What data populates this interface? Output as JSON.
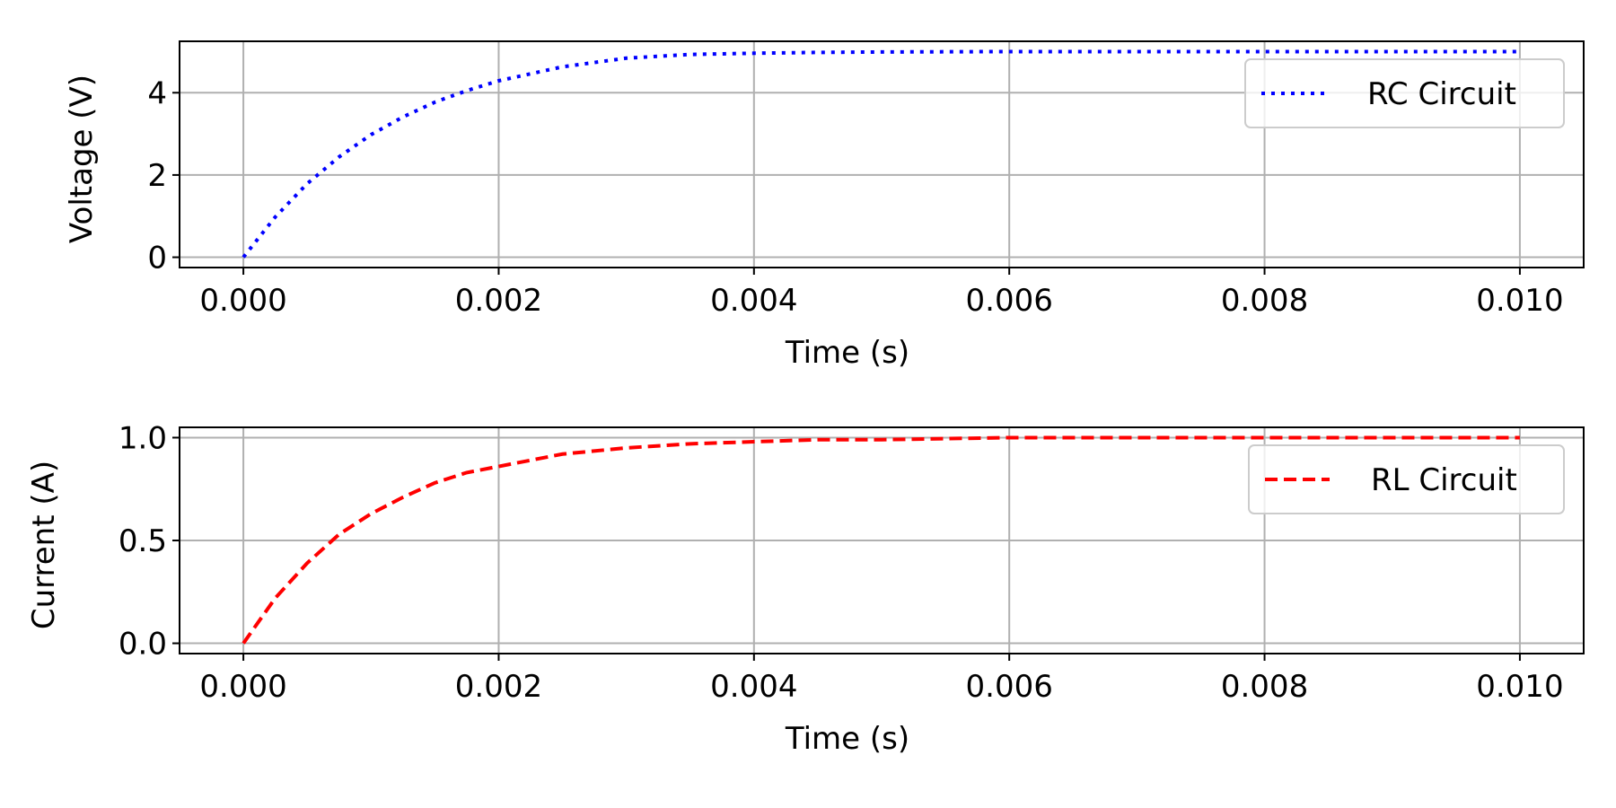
{
  "chart_data": [
    {
      "type": "line",
      "xlabel": "Time (s)",
      "ylabel": "Voltage (V)",
      "xlim": [
        -0.0005,
        0.0105
      ],
      "ylim": [
        -0.25,
        5.25
      ],
      "x_ticks": [
        0.0,
        0.002,
        0.004,
        0.006,
        0.008,
        0.01
      ],
      "x_tick_labels": [
        "0.000",
        "0.002",
        "0.004",
        "0.006",
        "0.008",
        "0.010"
      ],
      "y_ticks": [
        0,
        2,
        4
      ],
      "y_tick_labels": [
        "0",
        "2",
        "4"
      ],
      "grid": true,
      "legend_position": "upper-right",
      "series": [
        {
          "name": "RC Circuit",
          "color": "#0000ff",
          "style": "dotted",
          "x": [
            0,
            0.00025,
            0.0005,
            0.00075,
            0.001,
            0.00125,
            0.0015,
            0.00175,
            0.002,
            0.0025,
            0.003,
            0.0035,
            0.004,
            0.0045,
            0.005,
            0.006,
            0.007,
            0.008,
            0.009,
            0.01
          ],
          "values": [
            0.0,
            0.98,
            1.79,
            2.44,
            2.98,
            3.41,
            3.77,
            4.05,
            4.29,
            4.63,
            4.84,
            4.93,
            4.96,
            4.98,
            4.99,
            5.0,
            5.0,
            5.0,
            5.0,
            5.0
          ]
        }
      ]
    },
    {
      "type": "line",
      "xlabel": "Time (s)",
      "ylabel": "Current (A)",
      "xlim": [
        -0.0005,
        0.0105
      ],
      "ylim": [
        -0.05,
        1.05
      ],
      "x_ticks": [
        0.0,
        0.002,
        0.004,
        0.006,
        0.008,
        0.01
      ],
      "x_tick_labels": [
        "0.000",
        "0.002",
        "0.004",
        "0.006",
        "0.008",
        "0.010"
      ],
      "y_ticks": [
        0.0,
        0.5,
        1.0
      ],
      "y_tick_labels": [
        "0.0",
        "0.5",
        "1.0"
      ],
      "grid": true,
      "legend_position": "upper-right",
      "series": [
        {
          "name": "RL Circuit",
          "color": "#ff0000",
          "style": "dashed",
          "x": [
            0,
            0.00025,
            0.0005,
            0.00075,
            0.001,
            0.00125,
            0.0015,
            0.00175,
            0.002,
            0.0025,
            0.003,
            0.0035,
            0.004,
            0.0045,
            0.005,
            0.006,
            0.007,
            0.008,
            0.009,
            0.01
          ],
          "values": [
            0.0,
            0.22,
            0.39,
            0.53,
            0.63,
            0.71,
            0.78,
            0.83,
            0.86,
            0.92,
            0.95,
            0.97,
            0.98,
            0.99,
            0.99,
            1.0,
            1.0,
            1.0,
            1.0,
            1.0
          ]
        }
      ]
    }
  ]
}
